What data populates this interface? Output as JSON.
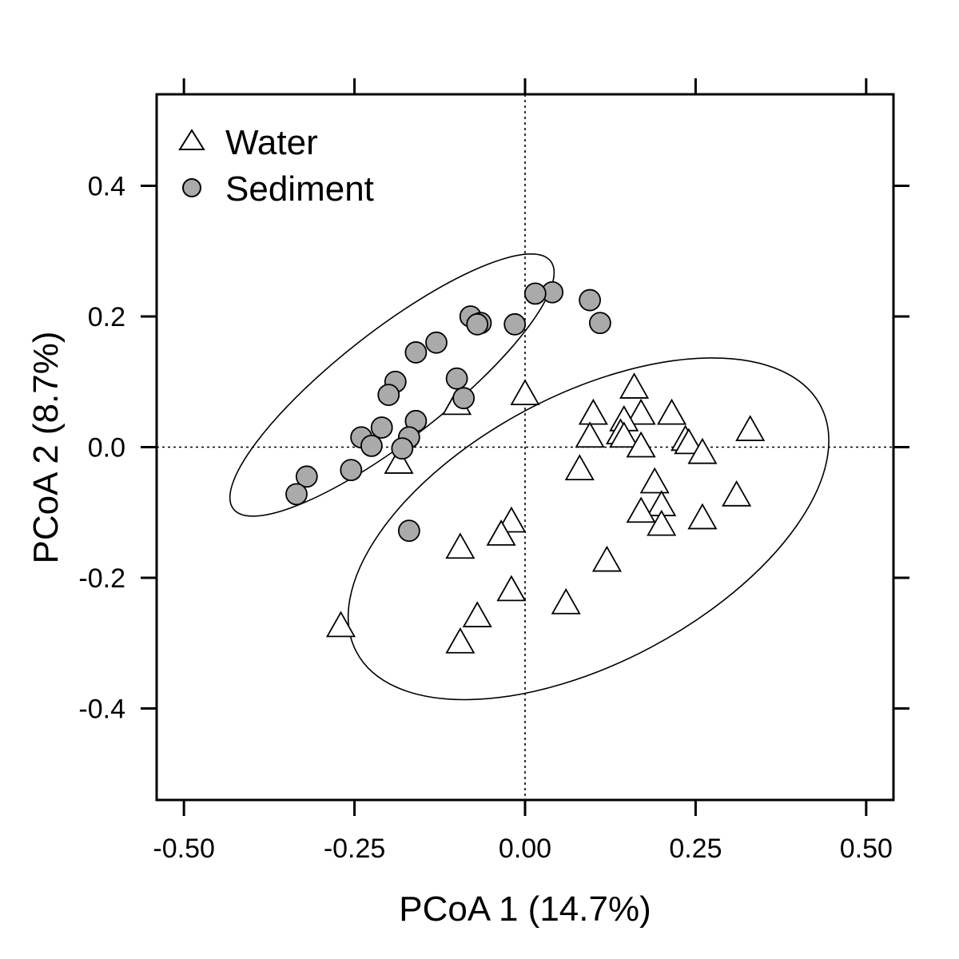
{
  "chart_data": {
    "type": "scatter",
    "title": "",
    "xlabel": "PCoA 1 (14.7%)",
    "ylabel": "PCoA 2 (8.7%)",
    "xlim": [
      -0.54,
      0.54
    ],
    "ylim": [
      -0.54,
      0.54
    ],
    "x_ticks": [
      -0.5,
      -0.25,
      0.0,
      0.25,
      0.5
    ],
    "x_tick_labels": [
      "-0.50",
      "-0.25",
      "0.00",
      "0.25",
      "0.50"
    ],
    "y_ticks": [
      -0.4,
      -0.2,
      0.0,
      0.2,
      0.4
    ],
    "y_tick_labels": [
      "-0.4",
      "-0.2",
      "0.0",
      "0.2",
      "0.4"
    ],
    "grid": false,
    "reference_lines": {
      "x": 0,
      "y": 0,
      "style": "dotted"
    },
    "legend": {
      "position": "top-left"
    },
    "series": [
      {
        "name": "Water",
        "marker": "open-triangle",
        "color": "#000000",
        "fill": "#ffffff",
        "points": [
          [
            0.16,
            0.09
          ],
          [
            -0.0,
            0.08
          ],
          [
            0.1,
            0.05
          ],
          [
            0.17,
            0.05
          ],
          [
            0.215,
            0.05
          ],
          [
            0.145,
            0.04
          ],
          [
            -0.1,
            0.065
          ],
          [
            0.33,
            0.025
          ],
          [
            0.14,
            0.02
          ],
          [
            0.095,
            0.015
          ],
          [
            0.145,
            0.015
          ],
          [
            0.235,
            0.01
          ],
          [
            0.24,
            0.005
          ],
          [
            0.17,
            -0.0
          ],
          [
            0.26,
            -0.01
          ],
          [
            -0.185,
            -0.025
          ],
          [
            0.08,
            -0.035
          ],
          [
            0.19,
            -0.055
          ],
          [
            0.31,
            -0.075
          ],
          [
            0.2,
            -0.09
          ],
          [
            0.17,
            -0.1
          ],
          [
            0.26,
            -0.11
          ],
          [
            0.2,
            -0.12
          ],
          [
            -0.02,
            -0.115
          ],
          [
            -0.035,
            -0.135
          ],
          [
            -0.095,
            -0.155
          ],
          [
            0.12,
            -0.175
          ],
          [
            -0.02,
            -0.22
          ],
          [
            0.06,
            -0.24
          ],
          [
            -0.07,
            -0.26
          ],
          [
            -0.27,
            -0.275
          ],
          [
            -0.095,
            -0.3
          ]
        ]
      },
      {
        "name": "Sediment",
        "marker": "filled-circle",
        "color": "#000000",
        "fill": "#aaaaaa",
        "points": [
          [
            0.04,
            0.237
          ],
          [
            0.015,
            0.235
          ],
          [
            0.095,
            0.225
          ],
          [
            -0.08,
            0.2
          ],
          [
            0.11,
            0.19
          ],
          [
            -0.065,
            0.19
          ],
          [
            -0.07,
            0.188
          ],
          [
            -0.015,
            0.188
          ],
          [
            -0.13,
            0.16
          ],
          [
            -0.16,
            0.145
          ],
          [
            -0.1,
            0.105
          ],
          [
            -0.19,
            0.1
          ],
          [
            -0.2,
            0.08
          ],
          [
            -0.09,
            0.075
          ],
          [
            -0.16,
            0.04
          ],
          [
            -0.21,
            0.03
          ],
          [
            -0.24,
            0.015
          ],
          [
            -0.17,
            0.015
          ],
          [
            -0.225,
            0.002
          ],
          [
            -0.18,
            -0.002
          ],
          [
            -0.255,
            -0.035
          ],
          [
            -0.32,
            -0.045
          ],
          [
            -0.335,
            -0.072
          ],
          [
            -0.17,
            -0.128
          ]
        ]
      }
    ],
    "ellipses": [
      {
        "series": "Sediment",
        "center": [
          -0.195,
          0.095
        ],
        "semi_axes": [
          0.295,
          0.083
        ],
        "angle_deg": 38
      },
      {
        "series": "Water",
        "center": [
          0.093,
          -0.125
        ],
        "semi_axes": [
          0.385,
          0.205
        ],
        "angle_deg": 28
      }
    ]
  }
}
